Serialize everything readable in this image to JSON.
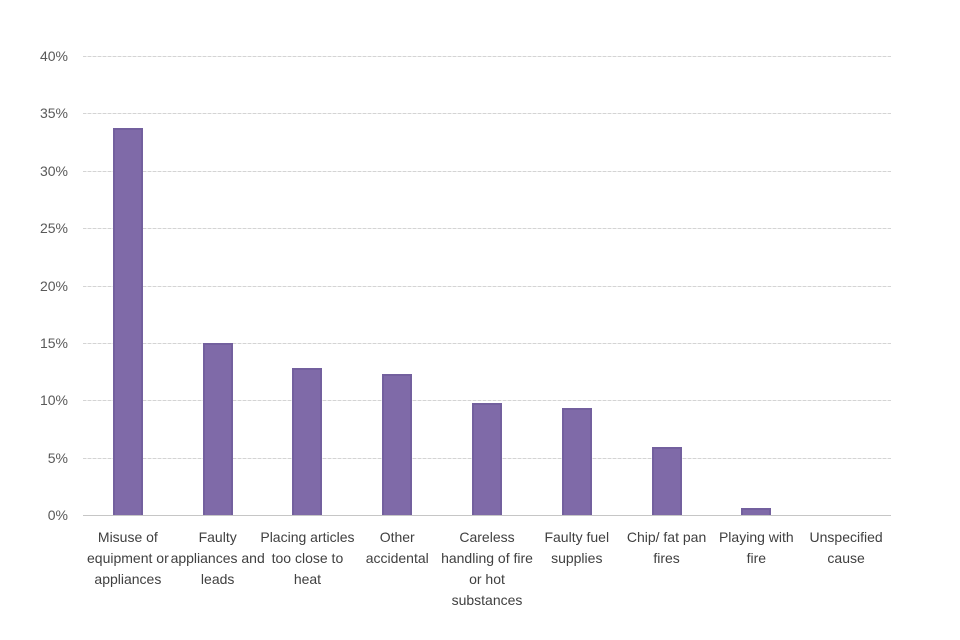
{
  "chart_data": {
    "type": "bar",
    "title": "",
    "categories": [
      "Misuse of equipment or appliances",
      "Faulty appliances and leads",
      "Placing articles too close to heat",
      "Other accidental",
      "Careless handling of fire or hot substances",
      "Faulty fuel supplies",
      "Chip/ fat pan fires",
      "Playing with fire",
      "Unspecified cause"
    ],
    "values": [
      33.7,
      15.0,
      12.8,
      12.3,
      9.8,
      9.3,
      5.9,
      0.6,
      0
    ],
    "value_unit": "%",
    "yticks": [
      0,
      5,
      10,
      15,
      20,
      25,
      30,
      35,
      40
    ],
    "ytick_labels": [
      "0%",
      "5%",
      "10%",
      "15%",
      "20%",
      "25%",
      "30%",
      "35%",
      "40%"
    ],
    "ylim": [
      0,
      40
    ],
    "xlabel": "",
    "ylabel": "",
    "grid": true,
    "legend_position": "none",
    "colors": {
      "bar_fill": "#7f6aa8",
      "bar_border": "#73609e",
      "gridline": "#d9d9d9",
      "axis_line": "#c6c6c6",
      "tick_text": "#595959",
      "category_text": "#404040",
      "background": "#ffffff"
    }
  }
}
